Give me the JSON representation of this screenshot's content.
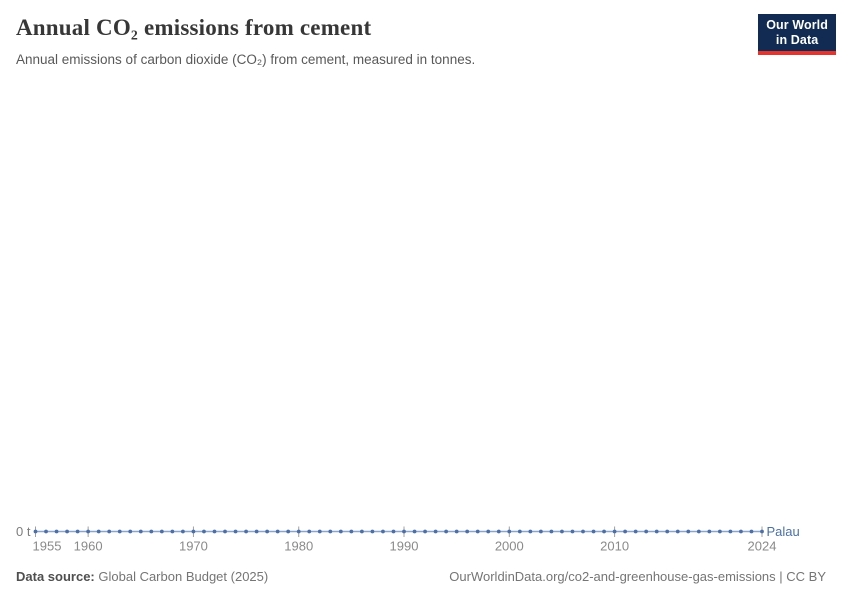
{
  "header": {
    "title": "Annual CO₂ emissions from cement",
    "subtitle": "Annual emissions of carbon dioxide (CO₂) from cement, measured in tonnes."
  },
  "logo": {
    "line1": "Our World",
    "line2": "in Data",
    "background_color": "#122b52",
    "stripe_color": "#e5332d"
  },
  "chart_data": {
    "type": "line",
    "title": "Annual CO₂ emissions from cement",
    "subtitle": "Annual emissions of carbon dioxide (CO₂) from cement, measured in tonnes.",
    "unit": "t",
    "x_start": 1955,
    "x_end": 2024,
    "x_step": 1,
    "x_ticks": [
      1955,
      1960,
      1970,
      1980,
      1990,
      2000,
      2010,
      2024
    ],
    "y_ticks": [
      "0 t"
    ],
    "ylim": [
      0,
      0
    ],
    "grid": false,
    "legend": "end-of-line-label",
    "series": [
      {
        "name": "Palau",
        "color": "#4c6fa8",
        "line_color": "#8aa6ce",
        "marker": "circle",
        "values": [
          0,
          0,
          0,
          0,
          0,
          0,
          0,
          0,
          0,
          0,
          0,
          0,
          0,
          0,
          0,
          0,
          0,
          0,
          0,
          0,
          0,
          0,
          0,
          0,
          0,
          0,
          0,
          0,
          0,
          0,
          0,
          0,
          0,
          0,
          0,
          0,
          0,
          0,
          0,
          0,
          0,
          0,
          0,
          0,
          0,
          0,
          0,
          0,
          0,
          0,
          0,
          0,
          0,
          0,
          0,
          0,
          0,
          0,
          0,
          0,
          0,
          0,
          0,
          0,
          0,
          0,
          0,
          0,
          0,
          0
        ]
      }
    ],
    "axis_colors": {
      "tick": "#a0a0a0",
      "tick_label": "#8a8a8a",
      "y_label": "#7d7d7d"
    }
  },
  "footer": {
    "source_label": "Data source:",
    "source_value": "Global Carbon Budget (2025)",
    "citation": "OurWorldinData.org/co2-and-greenhouse-gas-emissions | CC BY"
  }
}
